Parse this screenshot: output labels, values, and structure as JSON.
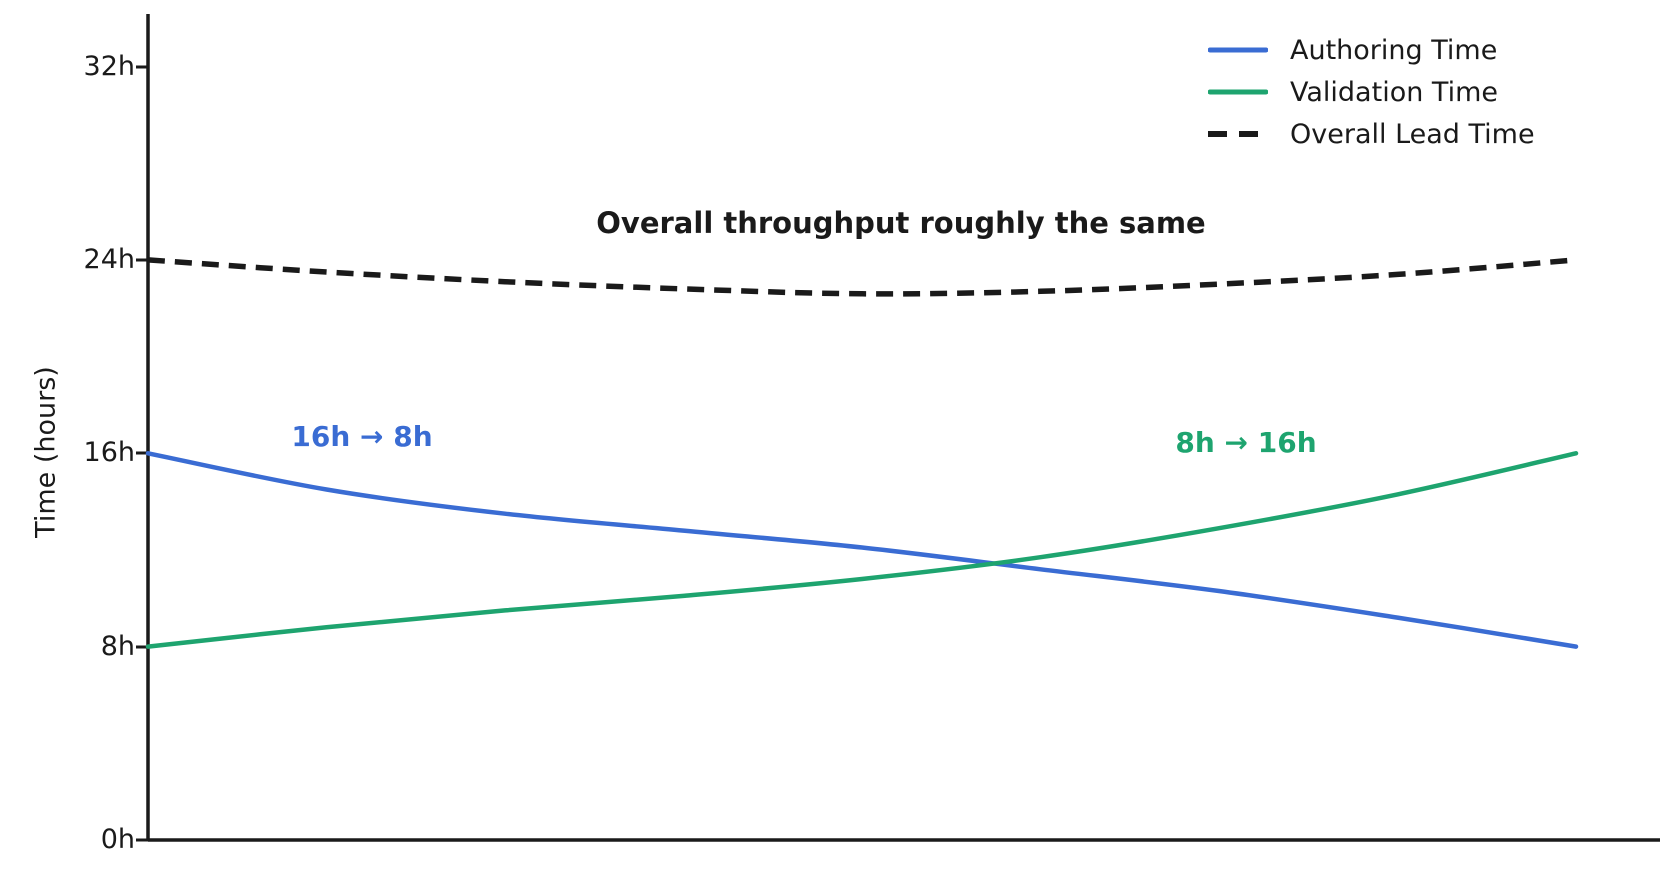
{
  "colors": {
    "background": "#ffffff",
    "axis": "#1a1a1a",
    "text": "#1a1a1a",
    "authoring_blue": "#3a6cd3",
    "validation_green": "#1ea46f",
    "lead_black": "#1a1a1a"
  },
  "chart_data": {
    "type": "line",
    "ylabel": "Time (hours)",
    "ylim": [
      0,
      34
    ],
    "grid": false,
    "legend_position": "upper right",
    "ytick_labels_top_to_bottom": [
      "32h",
      "24h",
      "16h",
      "8h",
      "0h"
    ],
    "ytick_values": [
      32,
      24,
      16,
      8,
      0
    ],
    "x_normalized": [
      0,
      0.125,
      0.25,
      0.375,
      0.5,
      0.625,
      0.75,
      0.875,
      1
    ],
    "series": [
      {
        "name": "Authoring Time",
        "color": "#3a6cd3",
        "style": "solid",
        "values": [
          16.0,
          14.5,
          13.5,
          12.8,
          12.1,
          11.2,
          10.3,
          9.2,
          8.0
        ]
      },
      {
        "name": "Validation Time",
        "color": "#1ea46f",
        "style": "solid",
        "values": [
          8.0,
          8.8,
          9.5,
          10.1,
          10.8,
          11.7,
          12.9,
          14.3,
          16.0
        ]
      },
      {
        "name": "Overall Lead Time",
        "color": "#1a1a1a",
        "style": "dashed",
        "values": [
          24.0,
          23.5,
          23.1,
          22.8,
          22.6,
          22.7,
          23.0,
          23.4,
          24.0
        ]
      }
    ],
    "annotations": [
      {
        "id": "main",
        "text": "Overall throughput roughly the same",
        "color": "#1a1a1a"
      },
      {
        "id": "authoring",
        "text": "16h → 8h",
        "color": "#3a6cd3"
      },
      {
        "id": "validation",
        "text": "8h → 16h",
        "color": "#1ea46f"
      }
    ]
  }
}
